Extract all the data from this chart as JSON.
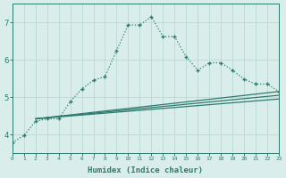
{
  "xlabel": "Humidex (Indice chaleur)",
  "background_color": "#d9eeeb",
  "grid_color": "#b8d8d4",
  "line_color": "#2d7b6e",
  "x_values": [
    0,
    1,
    2,
    3,
    4,
    5,
    6,
    7,
    8,
    9,
    10,
    11,
    12,
    13,
    14,
    15,
    16,
    17,
    18,
    19,
    20,
    21,
    22,
    23
  ],
  "series1": [
    3.78,
    3.97,
    4.35,
    4.42,
    4.42,
    4.88,
    5.22,
    5.45,
    5.55,
    6.25,
    6.93,
    6.93,
    7.15,
    6.62,
    6.62,
    6.08,
    5.72,
    5.92,
    5.92,
    5.72,
    5.48,
    5.35,
    5.35,
    5.15
  ],
  "series2_x": [
    2,
    23
  ],
  "series2_y": [
    4.42,
    5.15
  ],
  "series3_x": [
    2,
    23
  ],
  "series3_y": [
    4.42,
    5.05
  ],
  "series4_x": [
    2,
    23
  ],
  "series4_y": [
    4.42,
    4.95
  ],
  "yticks": [
    4,
    5,
    6,
    7
  ],
  "ylim": [
    3.5,
    7.5
  ],
  "xlim": [
    0,
    23
  ]
}
